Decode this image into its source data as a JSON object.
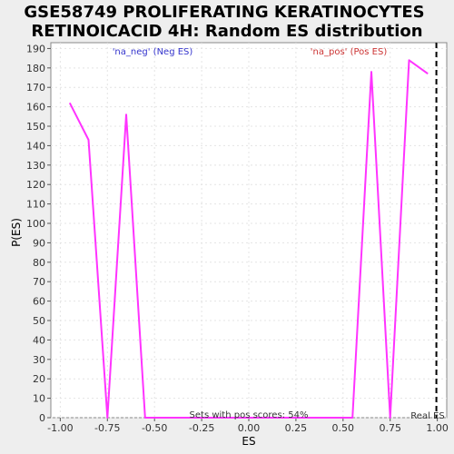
{
  "chart_data": {
    "type": "line",
    "title_line1": "GSE58749 PROLIFERATING KERATINOCYTES",
    "title_line2": "RETINOICACID 4H: Random ES distribution",
    "xlabel": "ES",
    "ylabel": "P(ES)",
    "xlim": [
      -1.05,
      1.05
    ],
    "ylim": [
      0,
      193
    ],
    "x_ticks": [
      -1.0,
      -0.75,
      -0.5,
      -0.25,
      0.0,
      0.25,
      0.5,
      0.75,
      1.0
    ],
    "x_tick_labels": [
      "-1.00",
      "-0.75",
      "-0.50",
      "-0.25",
      "0.00",
      "0.25",
      "0.50",
      "0.75",
      "1.00"
    ],
    "y_ticks": [
      0,
      10,
      20,
      30,
      40,
      50,
      60,
      70,
      80,
      90,
      100,
      110,
      120,
      130,
      140,
      150,
      160,
      170,
      180,
      190
    ],
    "grid": true,
    "series": [
      {
        "color": "#ff33ff",
        "points": [
          [
            -0.95,
            162
          ],
          [
            -0.85,
            143
          ],
          [
            -0.75,
            0
          ],
          [
            -0.65,
            156
          ],
          [
            -0.55,
            0
          ],
          [
            -0.45,
            0
          ],
          [
            -0.35,
            0
          ],
          [
            -0.25,
            0
          ],
          [
            -0.15,
            0
          ],
          [
            -0.05,
            0
          ],
          [
            0.05,
            0
          ],
          [
            0.15,
            0
          ],
          [
            0.25,
            0
          ],
          [
            0.35,
            0
          ],
          [
            0.45,
            0
          ],
          [
            0.55,
            0
          ],
          [
            0.65,
            178
          ],
          [
            0.75,
            0
          ],
          [
            0.85,
            184
          ],
          [
            0.95,
            177
          ]
        ]
      }
    ],
    "neg_label": "'na_neg' (Neg ES)",
    "pos_label": "'na_pos' (Pos ES)",
    "neg_label_color": "#3333cc",
    "pos_label_color": "#cc3333",
    "footer": "Sets with pos scores: 54%",
    "real_es_label": "Real ES",
    "real_es_x": 0.995
  }
}
